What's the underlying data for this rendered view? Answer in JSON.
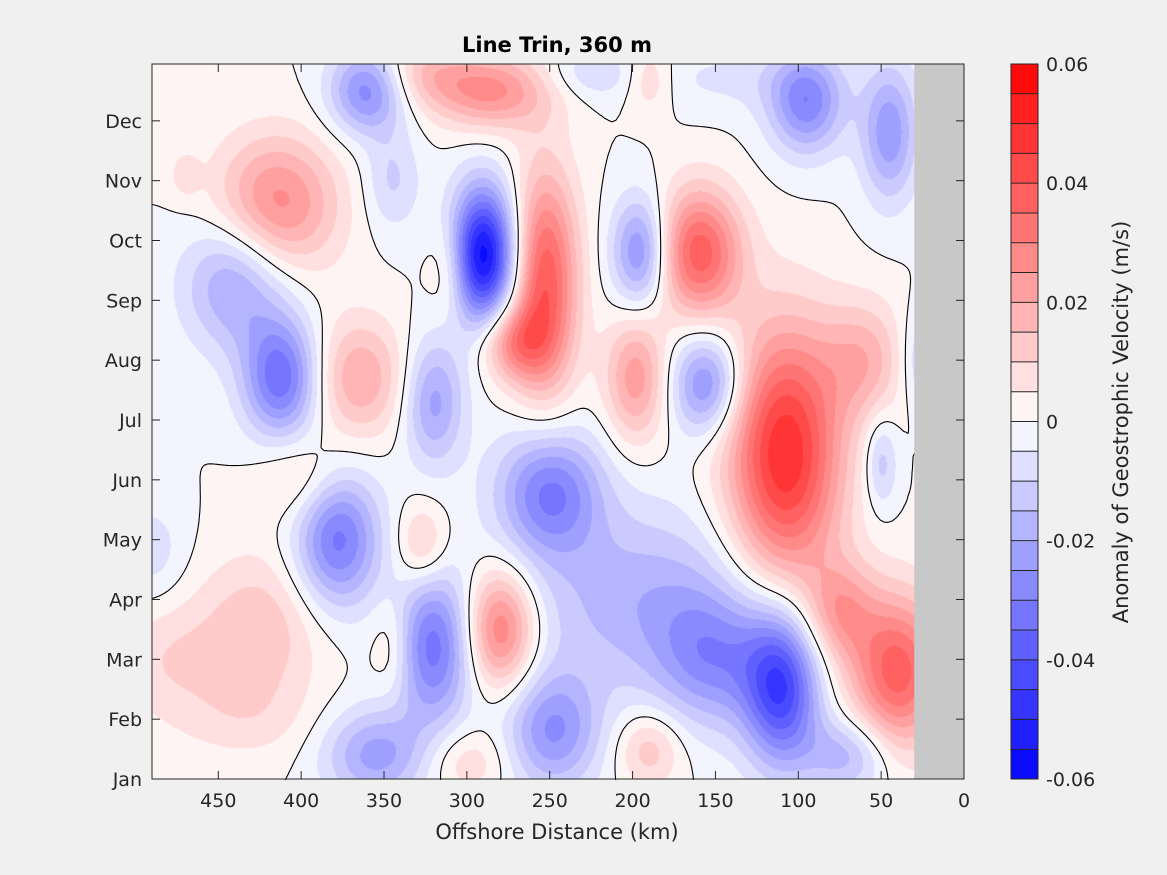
{
  "chart_data": {
    "type": "heatmap",
    "title": "Line Trin, 360 m",
    "xlabel": "Offshore Distance (km)",
    "ylabel": "",
    "colorbar_label": "Anomaly of Geostrophic Velocity (m/s)",
    "xlim": [
      490,
      0
    ],
    "x_reversed": true,
    "x_ticks": [
      450,
      400,
      350,
      300,
      250,
      200,
      150,
      100,
      50,
      0
    ],
    "y_categories": [
      "Jan",
      "Feb",
      "Mar",
      "Apr",
      "May",
      "Jun",
      "Jul",
      "Aug",
      "Sep",
      "Oct",
      "Nov",
      "Dec"
    ],
    "ylim": [
      1,
      12.95
    ],
    "clim": [
      -0.06,
      0.06
    ],
    "colorbar_ticks": [
      "0.06",
      "0.04",
      "0.02",
      "0",
      "-0.02",
      "-0.04",
      "-0.06"
    ],
    "colorbar_tick_values": [
      0.06,
      0.04,
      0.02,
      0,
      -0.02,
      -0.04,
      -0.06
    ],
    "contour_levels": 24,
    "zero_contour": true,
    "no_data_x_range": [
      30,
      0
    ],
    "no_data_color": "#c8c8c8",
    "colormap": {
      "negative": "#0000ff",
      "zero": "#ffffff",
      "positive": "#ff0000"
    },
    "features": [
      {
        "x": 360,
        "month": 12.5,
        "value": -0.028,
        "sx": 16,
        "sy": 0.5
      },
      {
        "x": 95,
        "month": 12.3,
        "value": -0.028,
        "sx": 16,
        "sy": 0.6
      },
      {
        "x": 45,
        "month": 11.8,
        "value": -0.024,
        "sx": 12,
        "sy": 0.8
      },
      {
        "x": 325,
        "month": 12.8,
        "value": 0.013,
        "sx": 20,
        "sy": 0.4
      },
      {
        "x": 285,
        "month": 12.5,
        "value": 0.026,
        "sx": 25,
        "sy": 0.45
      },
      {
        "x": 140,
        "month": 12.7,
        "value": -0.006,
        "sx": 40,
        "sy": 0.4
      },
      {
        "x": 225,
        "month": 12.8,
        "value": -0.009,
        "sx": 20,
        "sy": 0.3
      },
      {
        "x": 190,
        "month": 12.7,
        "value": 0.011,
        "sx": 10,
        "sy": 0.4
      },
      {
        "x": 415,
        "month": 10.6,
        "value": 0.028,
        "sx": 26,
        "sy": 0.8
      },
      {
        "x": 345,
        "month": 11.0,
        "value": -0.011,
        "sx": 12,
        "sy": 0.6
      },
      {
        "x": 290,
        "month": 9.75,
        "value": -0.058,
        "sx": 14,
        "sy": 0.8
      },
      {
        "x": 253,
        "month": 9.3,
        "value": 0.04,
        "sx": 14,
        "sy": 1.3
      },
      {
        "x": 272,
        "month": 8.3,
        "value": 0.025,
        "sx": 14,
        "sy": 0.45
      },
      {
        "x": 195,
        "month": 9.8,
        "value": -0.028,
        "sx": 12,
        "sy": 0.65
      },
      {
        "x": 160,
        "month": 9.8,
        "value": 0.038,
        "sx": 18,
        "sy": 0.75
      },
      {
        "x": 310,
        "month": 9.5,
        "value": 0.012,
        "sx": 9,
        "sy": 0.6
      },
      {
        "x": 440,
        "month": 9.3,
        "value": -0.022,
        "sx": 22,
        "sy": 0.8
      },
      {
        "x": 412,
        "month": 7.7,
        "value": -0.034,
        "sx": 16,
        "sy": 0.7
      },
      {
        "x": 365,
        "month": 7.7,
        "value": 0.02,
        "sx": 20,
        "sy": 0.7
      },
      {
        "x": 320,
        "month": 7.3,
        "value": -0.022,
        "sx": 13,
        "sy": 0.75
      },
      {
        "x": 198,
        "month": 7.7,
        "value": 0.023,
        "sx": 13,
        "sy": 0.75
      },
      {
        "x": 155,
        "month": 7.6,
        "value": -0.028,
        "sx": 15,
        "sy": 0.6
      },
      {
        "x": 60,
        "month": 8.0,
        "value": 0.017,
        "sx": 18,
        "sy": 0.7
      },
      {
        "x": 25,
        "month": 8.0,
        "value": -0.012,
        "sx": 10,
        "sy": 0.6
      },
      {
        "x": 108,
        "month": 6.4,
        "value": 0.05,
        "sx": 24,
        "sy": 1.5
      },
      {
        "x": 50,
        "month": 6.3,
        "value": -0.014,
        "sx": 7,
        "sy": 0.55
      },
      {
        "x": 250,
        "month": 5.8,
        "value": -0.03,
        "sx": 22,
        "sy": 0.75
      },
      {
        "x": 378,
        "month": 5.0,
        "value": -0.032,
        "sx": 18,
        "sy": 0.8
      },
      {
        "x": 327,
        "month": 4.9,
        "value": 0.014,
        "sx": 11,
        "sy": 0.5
      },
      {
        "x": 400,
        "month": 6.0,
        "value": 0.01,
        "sx": 18,
        "sy": 0.5
      },
      {
        "x": 320,
        "month": 3.2,
        "value": -0.032,
        "sx": 17,
        "sy": 0.9
      },
      {
        "x": 280,
        "month": 3.5,
        "value": 0.033,
        "sx": 15,
        "sy": 0.7
      },
      {
        "x": 345,
        "month": 3.2,
        "value": 0.01,
        "sx": 9,
        "sy": 0.6
      },
      {
        "x": 425,
        "month": 3.5,
        "value": 0.014,
        "sx": 26,
        "sy": 0.9
      },
      {
        "x": 480,
        "month": 3.0,
        "value": 0.009,
        "sx": 25,
        "sy": 0.7
      },
      {
        "x": 490,
        "month": 4.8,
        "value": -0.008,
        "sx": 14,
        "sy": 0.6
      },
      {
        "x": 195,
        "month": 4.0,
        "value": -0.018,
        "sx": 50,
        "sy": 1.1
      },
      {
        "x": 150,
        "month": 3.0,
        "value": -0.022,
        "sx": 25,
        "sy": 0.8
      },
      {
        "x": 110,
        "month": 2.5,
        "value": -0.042,
        "sx": 16,
        "sy": 0.9
      },
      {
        "x": 40,
        "month": 2.8,
        "value": 0.038,
        "sx": 20,
        "sy": 0.9
      },
      {
        "x": 75,
        "month": 3.8,
        "value": 0.02,
        "sx": 15,
        "sy": 0.6
      },
      {
        "x": 355,
        "month": 1.4,
        "value": -0.022,
        "sx": 22,
        "sy": 0.55
      },
      {
        "x": 248,
        "month": 1.8,
        "value": -0.025,
        "sx": 20,
        "sy": 0.7
      },
      {
        "x": 300,
        "month": 1.3,
        "value": 0.01,
        "sx": 18,
        "sy": 0.4
      },
      {
        "x": 190,
        "month": 1.5,
        "value": 0.014,
        "sx": 14,
        "sy": 0.45
      },
      {
        "x": 70,
        "month": 1.4,
        "value": -0.018,
        "sx": 18,
        "sy": 0.45
      },
      {
        "x": 435,
        "month": 2.0,
        "value": 0.006,
        "sx": 30,
        "sy": 0.5
      },
      {
        "x": 470,
        "month": 11.1,
        "value": 0.008,
        "sx": 6,
        "sy": 0.25
      }
    ]
  }
}
